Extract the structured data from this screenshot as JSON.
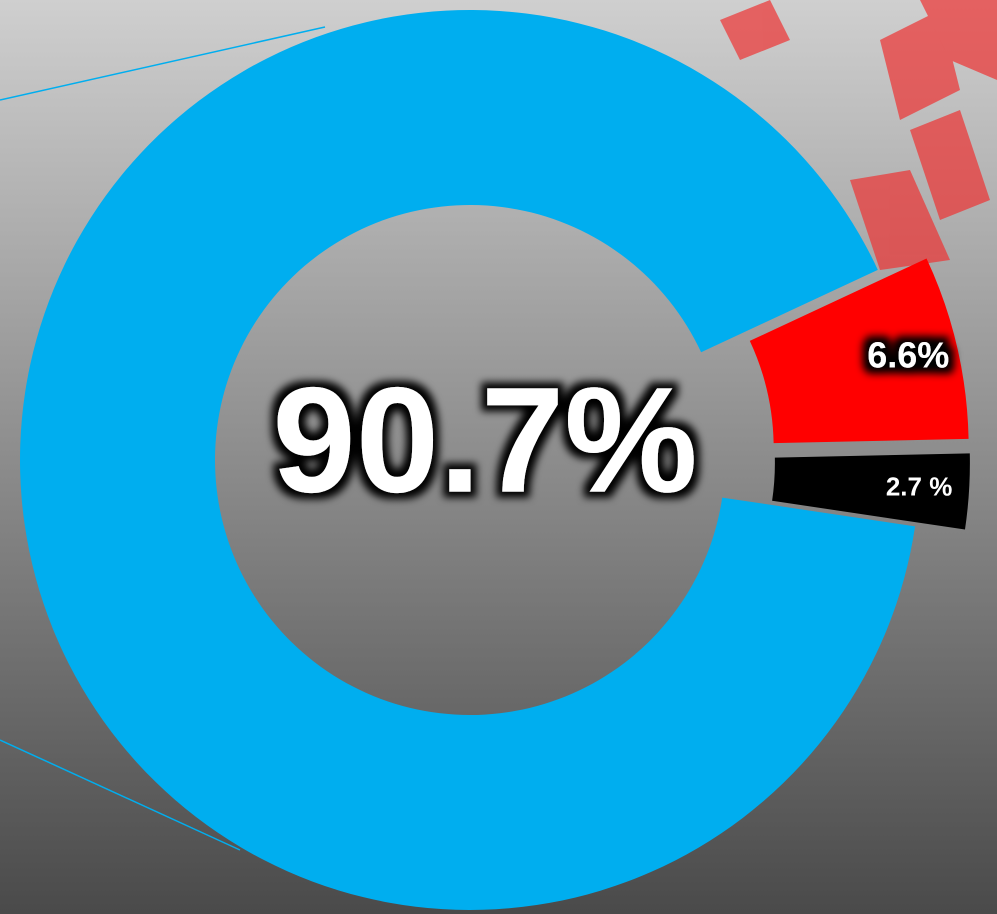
{
  "chart_data": {
    "type": "pie",
    "donut": true,
    "values": [
      90.7,
      6.6,
      2.7
    ],
    "value_labels": [
      "90.7%",
      "6.6%",
      "2.7 %"
    ],
    "colors": [
      "#00aeef",
      "#ff0000",
      "#000000"
    ]
  }
}
